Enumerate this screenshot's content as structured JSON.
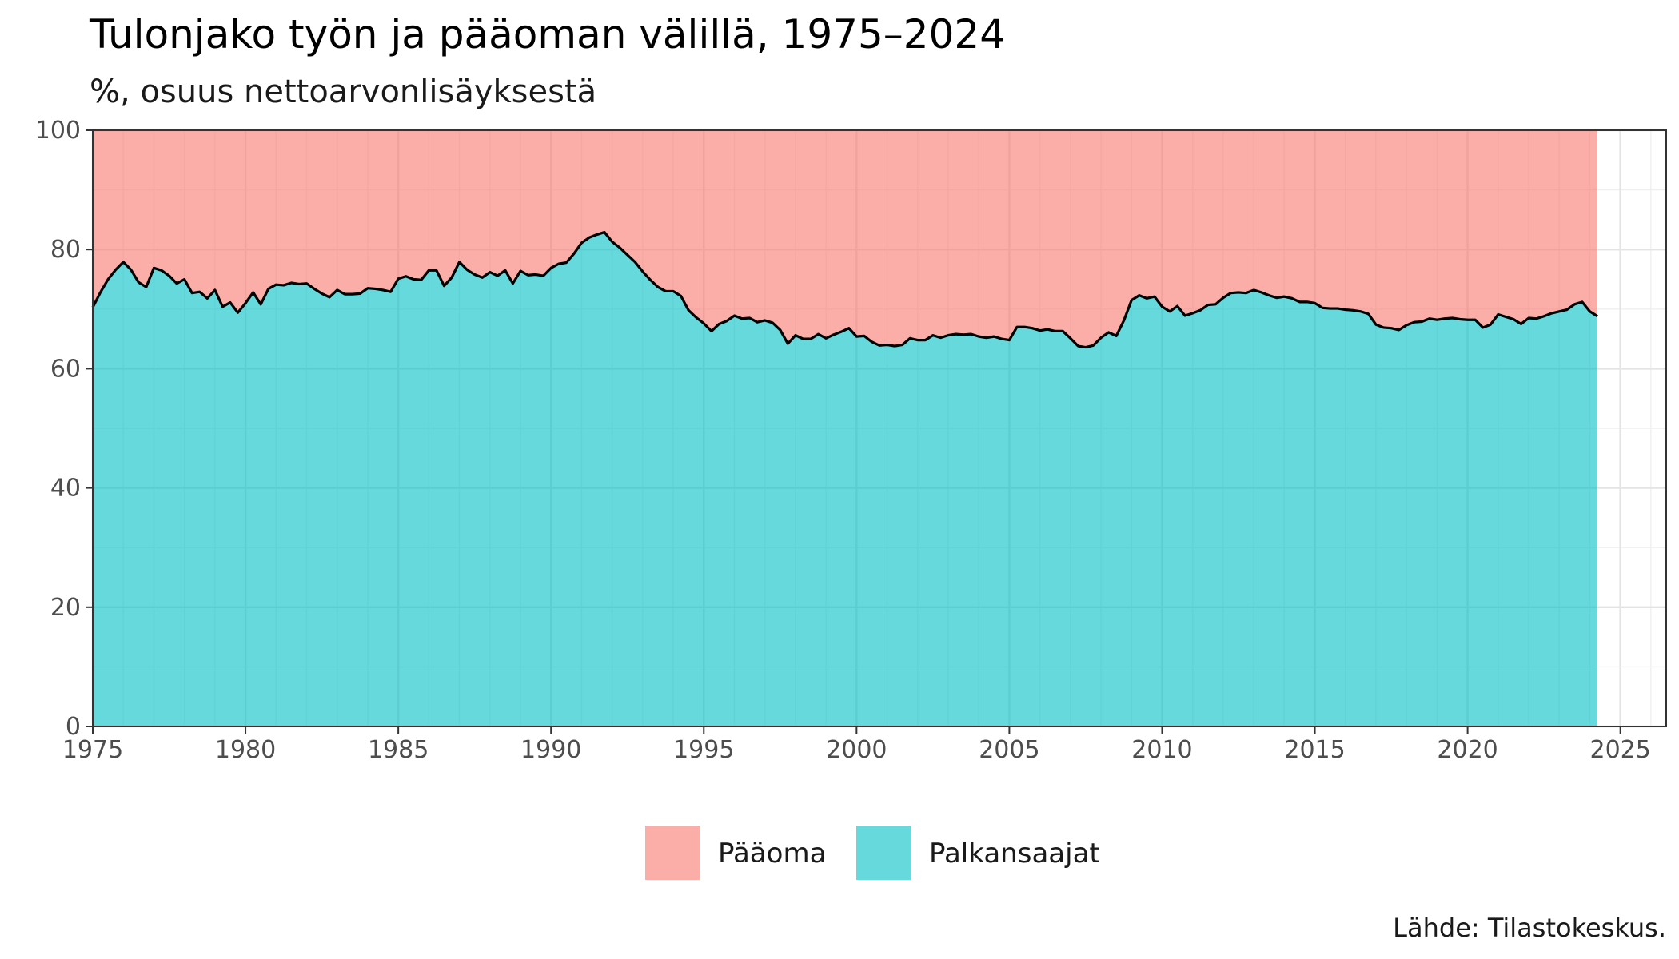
{
  "chart_data": {
    "type": "area",
    "title": "Tulonjako työn ja pääoman välillä, 1975–2024",
    "subtitle": "%, osuus nettoarvonlisäyksestä",
    "caption": "Lähde: Tilastokeskus.",
    "xlabel": "",
    "ylabel": "",
    "xlim": [
      1975,
      2026.5
    ],
    "ylim": [
      0,
      100
    ],
    "x_ticks": [
      "1975",
      "1980",
      "1985",
      "1990",
      "1995",
      "2000",
      "2005",
      "2010",
      "2015",
      "2020",
      "2025"
    ],
    "y_ticks": [
      "0",
      "20",
      "40",
      "60",
      "80",
      "100"
    ],
    "grid": true,
    "legend_position": "bottom",
    "stacked_percent": true,
    "series": [
      {
        "name": "Pääoma",
        "color": "#F8766D",
        "fill_opacity": 0.6
      },
      {
        "name": "Palkansaajat",
        "color": "#00BFC4",
        "fill_opacity": 0.6
      }
    ],
    "palkansaajat_quarterly": {
      "start_year": 1975,
      "values": [
        70.3,
        72.8,
        75.0,
        76.6,
        77.9,
        76.6,
        74.5,
        73.7,
        76.9,
        76.5,
        75.6,
        74.3,
        75.0,
        72.7,
        72.9,
        71.8,
        73.2,
        70.4,
        71.1,
        69.4,
        71.0,
        72.8,
        70.8,
        73.4,
        74.1,
        74.0,
        74.4,
        74.2,
        74.3,
        73.4,
        72.6,
        72.0,
        73.2,
        72.5,
        72.5,
        72.6,
        73.5,
        73.4,
        73.2,
        72.9,
        75.1,
        75.5,
        75.0,
        74.9,
        76.5,
        76.5,
        73.9,
        75.3,
        77.9,
        76.6,
        75.8,
        75.3,
        76.2,
        75.6,
        76.5,
        74.3,
        76.4,
        75.7,
        75.8,
        75.6,
        76.9,
        77.6,
        77.8,
        79.3,
        81.1,
        82.0,
        82.5,
        82.9,
        81.3,
        80.3,
        79.1,
        77.9,
        76.3,
        74.9,
        73.7,
        73.0,
        73.0,
        72.2,
        69.8,
        68.6,
        67.6,
        66.3,
        67.5,
        68.0,
        68.9,
        68.4,
        68.5,
        67.8,
        68.1,
        67.7,
        66.5,
        64.2,
        65.6,
        65.0,
        65.0,
        65.8,
        65.1,
        65.7,
        66.2,
        66.8,
        65.4,
        65.5,
        64.5,
        63.9,
        64.0,
        63.8,
        64.0,
        65.1,
        64.8,
        64.8,
        65.6,
        65.2,
        65.6,
        65.8,
        65.7,
        65.8,
        65.4,
        65.2,
        65.4,
        65.0,
        64.8,
        67.0,
        67.0,
        66.8,
        66.4,
        66.6,
        66.3,
        66.3,
        65.1,
        63.8,
        63.6,
        63.9,
        65.2,
        66.1,
        65.5,
        68.1,
        71.5,
        72.3,
        71.8,
        72.1,
        70.4,
        69.6,
        70.5,
        68.9,
        69.3,
        69.8,
        70.7,
        70.8,
        71.9,
        72.7,
        72.8,
        72.7,
        73.2,
        72.8,
        72.3,
        71.9,
        72.1,
        71.8,
        71.2,
        71.2,
        71.0,
        70.2,
        70.1,
        70.1,
        69.9,
        69.8,
        69.6,
        69.2,
        67.4,
        66.9,
        66.8,
        66.5,
        67.3,
        67.8,
        67.9,
        68.4,
        68.2,
        68.4,
        68.5,
        68.3,
        68.2,
        68.2,
        66.9,
        67.4,
        69.1,
        68.7,
        68.3,
        67.5,
        68.5,
        68.4,
        68.8,
        69.3,
        69.6,
        69.9,
        70.8,
        71.2,
        69.6,
        68.8
      ]
    }
  }
}
